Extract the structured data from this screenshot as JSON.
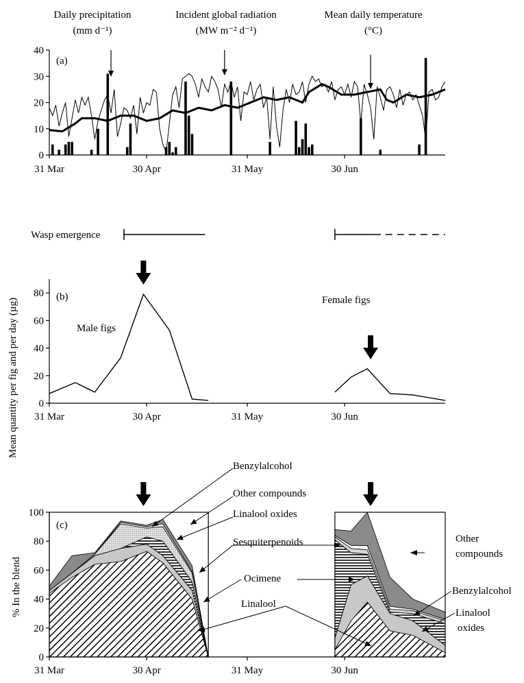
{
  "chart_data": [
    {
      "panel": "(a)",
      "type": "line",
      "header_labels": [
        {
          "line1": "Daily precipitation",
          "line2": "(mm d⁻¹)"
        },
        {
          "line1": "Incident global radiation",
          "line2": "(MW m⁻² d⁻¹)"
        },
        {
          "line1": "Mean daily temperature",
          "line2": "(°C)"
        }
      ],
      "x_ticks": [
        {
          "day": 0,
          "label": "31 Mar"
        },
        {
          "day": 30,
          "label": "30 Apr"
        },
        {
          "day": 61,
          "label": "31 May"
        },
        {
          "day": 91,
          "label": "30 Jun"
        }
      ],
      "xlim": [
        0,
        122
      ],
      "ylim": [
        0,
        40
      ],
      "y_ticks": [
        0,
        10,
        20,
        30,
        40
      ],
      "temperature": {
        "x": [
          0,
          4,
          8,
          10,
          14,
          18,
          22,
          26,
          30,
          34,
          38,
          42,
          46,
          50,
          54,
          58,
          62,
          66,
          70,
          74,
          78,
          80,
          84,
          86,
          90,
          94,
          98,
          102,
          104,
          106,
          110,
          114,
          118,
          122
        ],
        "y": [
          9.5,
          9,
          12,
          14,
          14,
          13,
          15,
          15,
          13,
          14,
          17,
          16,
          18,
          17,
          19,
          18,
          20,
          22,
          21,
          22,
          20,
          24,
          27,
          26,
          23,
          23,
          24,
          25,
          21,
          20,
          23,
          22,
          23,
          25
        ]
      },
      "radiation": {
        "x": [
          0,
          1,
          2,
          3,
          4,
          5,
          6,
          7,
          8,
          9,
          10,
          11,
          12,
          13,
          14,
          15,
          16,
          17,
          18,
          19,
          20,
          21,
          22,
          23,
          24,
          25,
          26,
          27,
          28,
          29,
          30,
          31,
          32,
          33,
          34,
          35,
          36,
          37,
          38,
          39,
          40,
          41,
          42,
          43,
          44,
          45,
          46,
          47,
          48,
          49,
          50,
          51,
          52,
          53,
          54,
          55,
          56,
          57,
          58,
          59,
          60,
          61,
          62,
          63,
          64,
          65,
          66,
          67,
          68,
          69,
          70,
          71,
          72,
          73,
          74,
          75,
          76,
          77,
          78,
          79,
          80,
          81,
          82,
          83,
          84,
          85,
          86,
          87,
          88,
          89,
          90,
          91,
          92,
          93,
          94,
          95,
          96,
          97,
          98,
          99,
          100,
          101,
          102,
          103,
          104,
          105,
          106,
          107,
          108,
          109,
          110,
          111,
          112,
          113,
          114,
          115,
          116,
          117,
          118,
          119,
          120,
          121,
          122
        ],
        "y": [
          18,
          15,
          19,
          11,
          16,
          20,
          7,
          14,
          21,
          16,
          22,
          19,
          22,
          15,
          6,
          13,
          17,
          21,
          23,
          16,
          25,
          7,
          12,
          18,
          17,
          14,
          19,
          8,
          22,
          16,
          20,
          19,
          25,
          24,
          10,
          4,
          1,
          12,
          23,
          26,
          18,
          29,
          30,
          31,
          30,
          27,
          22,
          29,
          26,
          24,
          30,
          28,
          25,
          18,
          27,
          24,
          28,
          22,
          26,
          13,
          24,
          23,
          28,
          21,
          25,
          27,
          18,
          22,
          6,
          26,
          11,
          3,
          17,
          25,
          20,
          27,
          23,
          24,
          28,
          20,
          27,
          30,
          28,
          29,
          26,
          27,
          24,
          28,
          21,
          25,
          26,
          23,
          27,
          22,
          28,
          26,
          12,
          27,
          23,
          18,
          6,
          26,
          22,
          17,
          25,
          26,
          23,
          18,
          25,
          19,
          23,
          24,
          21,
          23,
          19,
          15,
          6,
          24,
          25,
          21,
          22,
          26,
          28
        ]
      },
      "precipitation": {
        "x": [
          1,
          3,
          5,
          6,
          7,
          13,
          15,
          18,
          24,
          25,
          36,
          37,
          38,
          39,
          42,
          43,
          44,
          56,
          68,
          76,
          77,
          78,
          79,
          80,
          81,
          96,
          102,
          114,
          116
        ],
        "y": [
          4,
          2,
          4,
          5,
          5,
          2,
          10,
          31,
          3,
          12,
          3,
          5,
          1,
          3,
          28,
          15,
          8,
          28,
          5,
          13,
          3,
          6,
          12,
          3,
          4,
          14,
          2,
          4,
          37
        ]
      },
      "arrows_day": [
        19,
        54,
        99
      ]
    },
    {
      "panel": "(b)",
      "type": "line",
      "emergence_label": "Wasp emergence",
      "emergence": [
        {
          "start": 23,
          "end": 48,
          "dashed": false
        },
        {
          "start": 88,
          "end": 100,
          "dashed": false
        },
        {
          "start": 100,
          "end": 122,
          "dashed": true
        }
      ],
      "ylabel": "Mean quantity per fig and per day (µg)",
      "x_ticks": [
        {
          "day": 0,
          "label": "31 Mar"
        },
        {
          "day": 30,
          "label": "30 Apr"
        },
        {
          "day": 61,
          "label": "31 May"
        },
        {
          "day": 91,
          "label": "30 Jun"
        }
      ],
      "xlim": [
        0,
        122
      ],
      "ylim": [
        0,
        90
      ],
      "y_ticks": [
        0,
        20,
        40,
        60,
        80
      ],
      "series": [
        {
          "name": "Male figs",
          "x": [
            0,
            8,
            14,
            22,
            29,
            37,
            44,
            49
          ],
          "y": [
            7,
            15,
            8,
            33,
            79,
            53,
            3,
            2
          ]
        },
        {
          "name": "Female figs",
          "x": [
            88,
            93,
            98,
            105,
            112,
            122
          ],
          "y": [
            8,
            19,
            25,
            7,
            6,
            2
          ]
        }
      ],
      "arrows_day": [
        29,
        99
      ]
    },
    {
      "panel": "(c)",
      "type": "area",
      "ylabel": "% In the blend",
      "x_ticks": [
        {
          "day": 0,
          "label": "31 Mar"
        },
        {
          "day": 30,
          "label": "30 Apr"
        },
        {
          "day": 61,
          "label": "31 May"
        },
        {
          "day": 91,
          "label": "30 Jun"
        }
      ],
      "xlim": [
        0,
        122
      ],
      "ylim": [
        0,
        100
      ],
      "y_ticks": [
        0,
        20,
        40,
        60,
        80,
        100
      ],
      "labels": [
        "Benzylalcohol",
        "Other compounds",
        "Linalool oxides",
        "Sesquiterpenoids",
        "Ocimene",
        "Linalool",
        "Other",
        "compounds",
        "Benzylalcohol",
        "Linalool",
        "oxides"
      ],
      "male_periods": {
        "x": [
          0,
          7,
          14,
          22,
          30,
          35,
          44,
          49
        ],
        "linalool": [
          44,
          55,
          64,
          66,
          73,
          65,
          40,
          0
        ],
        "ocimene": [
          2,
          3,
          6,
          9,
          5,
          5,
          6,
          0
        ],
        "sesquiterpenoids": [
          0,
          0,
          0,
          0,
          5,
          10,
          6,
          0
        ],
        "linalool_oxides": [
          0,
          0,
          1,
          17,
          6,
          10,
          6,
          0
        ],
        "benzylalcohol": [
          0,
          0,
          0,
          1,
          1,
          2,
          1,
          0
        ],
        "other": [
          3,
          12,
          1,
          1,
          1,
          3,
          4,
          0
        ]
      },
      "female_periods": {
        "x": [
          88,
          93,
          98,
          105,
          112,
          122
        ],
        "linalool": [
          5,
          25,
          38,
          18,
          15,
          3
        ],
        "ocimene": [
          8,
          25,
          18,
          12,
          10,
          5
        ],
        "sesquiterpenoids": [
          68,
          22,
          15,
          1,
          5,
          15
        ],
        "linalool_oxides": [
          2,
          3,
          3,
          2,
          2,
          2
        ],
        "benzylalcohol": [
          1,
          2,
          3,
          2,
          1,
          1
        ],
        "other": [
          4,
          10,
          23,
          20,
          7,
          5
        ]
      },
      "arrows_day": [
        29,
        99
      ]
    }
  ]
}
